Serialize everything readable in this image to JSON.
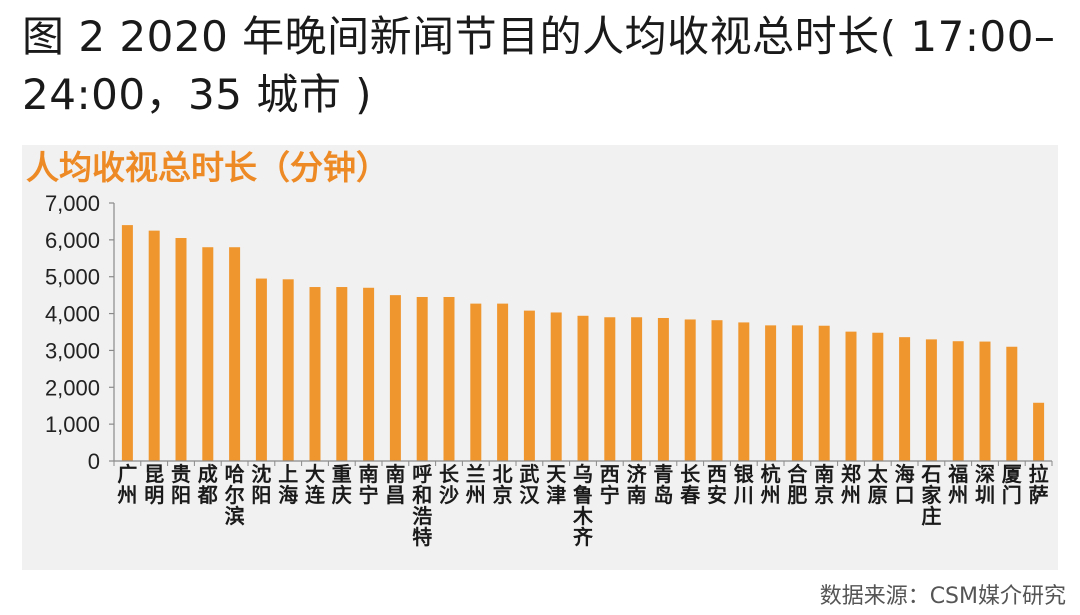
{
  "title": "图 2 2020 年晚间新闻节目的人均收视总时长( 17:00–24:00，35 城市 )",
  "source": "数据来源：CSM媒介研究",
  "colors": {
    "bar": "#f0962e",
    "subtitle": "#ee8a25"
  },
  "chart_data": {
    "type": "bar",
    "title": "人均收视总时长（分钟）",
    "xlabel": "",
    "ylabel": "",
    "ylim": [
      0,
      7000
    ],
    "yticks": [
      "0",
      "1,000",
      "2,000",
      "3,000",
      "4,000",
      "5,000",
      "6,000",
      "7,000"
    ],
    "grid": false,
    "categories": [
      "广州",
      "昆明",
      "贵阳",
      "成都",
      "哈尔滨",
      "沈阳",
      "上海",
      "大连",
      "重庆",
      "南宁",
      "南昌",
      "呼和浩特",
      "长沙",
      "兰州",
      "北京",
      "武汉",
      "天津",
      "乌鲁木齐",
      "西宁",
      "济南",
      "青岛",
      "长春",
      "西安",
      "银川",
      "杭州",
      "合肥",
      "南京",
      "郑州",
      "太原",
      "海口",
      "石家庄",
      "福州",
      "深圳",
      "厦门",
      "拉萨"
    ],
    "values": [
      6400,
      6250,
      6050,
      5800,
      5800,
      4950,
      4930,
      4720,
      4720,
      4700,
      4500,
      4450,
      4450,
      4270,
      4270,
      4080,
      4030,
      3940,
      3900,
      3900,
      3880,
      3840,
      3820,
      3760,
      3680,
      3680,
      3670,
      3510,
      3480,
      3360,
      3300,
      3250,
      3240,
      3100,
      1580
    ]
  }
}
